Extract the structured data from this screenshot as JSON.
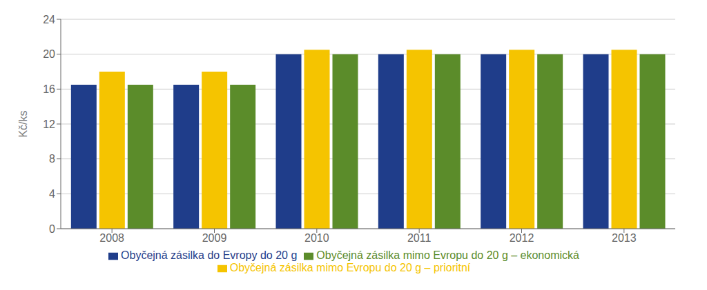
{
  "chart_data": {
    "type": "bar",
    "categories": [
      "2008",
      "2009",
      "2010",
      "2011",
      "2012",
      "2013"
    ],
    "series": [
      {
        "name": "Obyčejná zásilka do Evropy do 20 g",
        "color": "#1F3D8A",
        "values": [
          16.5,
          16.5,
          20.0,
          20.0,
          20.0,
          20.0
        ]
      },
      {
        "name": "Obyčejná zásilka mimo Evropu do 20 g – prioritní",
        "color": "#F5C400",
        "values": [
          18.0,
          18.0,
          20.5,
          20.5,
          20.5,
          20.5
        ]
      },
      {
        "name": "Obyčejná zásilka mimo Evropu do 20 g – ekonomická",
        "color": "#5B8C2A",
        "values": [
          16.5,
          16.5,
          20.0,
          20.0,
          20.0,
          20.0
        ]
      }
    ],
    "y_label": "Kč/ks",
    "ylim": [
      0,
      24
    ],
    "yticks": [
      0,
      4,
      8,
      12,
      16,
      20,
      24
    ],
    "grid": true,
    "legend": "bottom"
  }
}
